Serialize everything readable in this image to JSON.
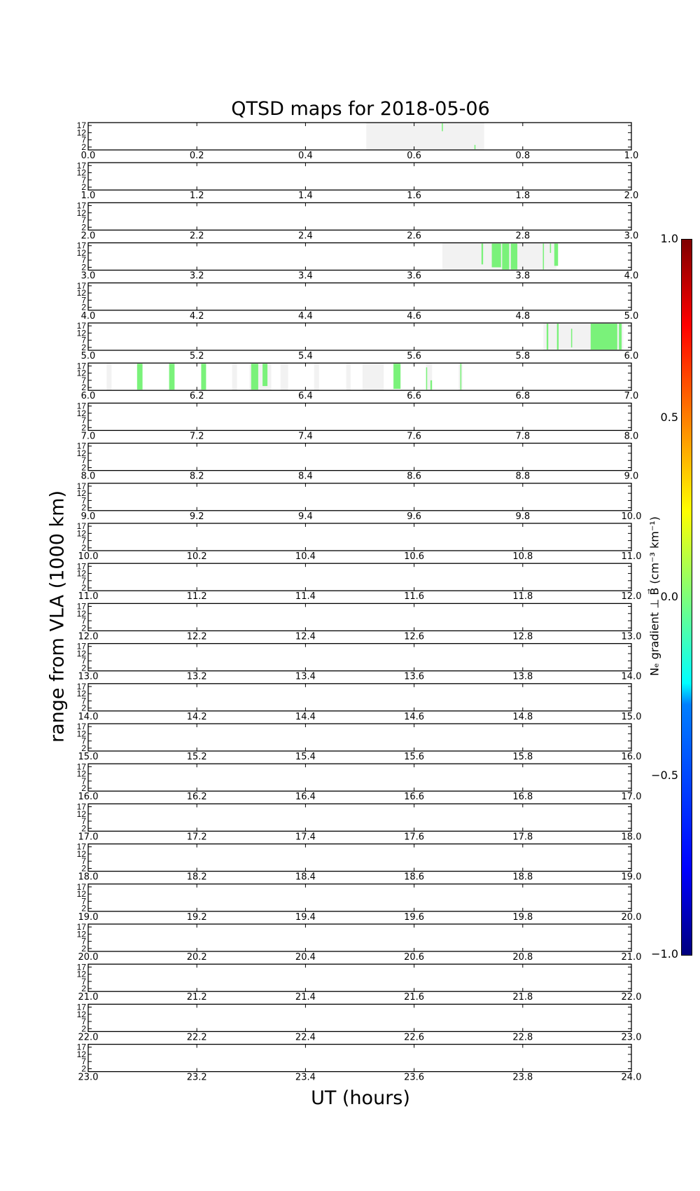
{
  "chart_data": {
    "type": "heatmap",
    "title": "QTSD maps for 2018-05-06",
    "xlabel": "UT (hours)",
    "ylabel": "range from VLA (1000 km)",
    "yticks": [
      2,
      7,
      12,
      17
    ],
    "ylim": [
      0,
      19
    ],
    "panel_hours": 1,
    "num_panels": 24,
    "xtick_step": 0.2,
    "colorbar": {
      "label": "Nₑ gradient ⊥ B⃗ (cm⁻³ km⁻¹)",
      "range": [
        -1.0,
        1.0
      ],
      "ticks": [
        "1.0",
        "0.5",
        "0.0",
        "−0.5",
        "−1.0"
      ],
      "tick_values": [
        1.0,
        0.5,
        0.0,
        -0.5,
        -1.0
      ],
      "colormap": "jet"
    },
    "coverage_color": "#f2f2f2",
    "data_color": "#7af27a",
    "coverage_intervals": [
      [
        0.512,
        0.729
      ],
      [
        3.652,
        0.0
      ],
      [
        3.652,
        3.862
      ],
      [
        5.838,
        5.985
      ],
      [
        6.034,
        6.043
      ],
      [
        6.265,
        6.274
      ],
      [
        6.297,
        6.337
      ],
      [
        6.354,
        6.368
      ],
      [
        6.416,
        6.425
      ],
      [
        6.475,
        6.483
      ],
      [
        6.505,
        6.544
      ],
      [
        6.622,
        6.633
      ],
      [
        6.682,
        6.689
      ]
    ],
    "gradient_segments": [
      [
        0.651,
        0.653,
        13,
        18.5,
        0.0
      ],
      [
        0.711,
        0.713,
        0.5,
        3.5,
        0.0
      ],
      [
        3.724,
        3.727,
        4,
        18.5,
        0.0
      ],
      [
        3.743,
        3.76,
        2,
        18.5,
        0.0
      ],
      [
        3.762,
        3.775,
        0.5,
        18.5,
        0.0
      ],
      [
        3.778,
        3.79,
        0.5,
        18.5,
        0.0
      ],
      [
        3.837,
        3.839,
        0.5,
        18.5,
        0.0
      ],
      [
        3.85,
        3.852,
        12,
        18.5,
        0.0
      ],
      [
        3.858,
        3.865,
        3,
        18.5,
        0.0
      ],
      [
        5.844,
        5.847,
        0.5,
        18.5,
        0.0
      ],
      [
        5.863,
        5.866,
        0.5,
        18.5,
        0.0
      ],
      [
        5.889,
        5.891,
        2,
        15,
        0.0
      ],
      [
        5.925,
        5.974,
        0.5,
        18.5,
        0.0
      ],
      [
        5.977,
        5.982,
        0.5,
        18.5,
        0.0
      ],
      [
        6.09,
        6.1,
        0.5,
        18.5,
        0.0
      ],
      [
        6.149,
        6.159,
        0.5,
        18.5,
        0.0
      ],
      [
        6.208,
        6.217,
        0.5,
        18.5,
        0.0
      ],
      [
        6.3,
        6.313,
        0.5,
        18.5,
        0.0
      ],
      [
        6.321,
        6.33,
        3,
        18.5,
        0.0
      ],
      [
        6.562,
        6.575,
        1,
        18.5,
        0.0
      ],
      [
        6.622,
        6.624,
        0.5,
        16,
        0.0
      ],
      [
        6.63,
        6.633,
        0.5,
        7,
        0.0
      ],
      [
        6.685,
        6.687,
        0.5,
        18.5,
        0.0
      ]
    ]
  }
}
